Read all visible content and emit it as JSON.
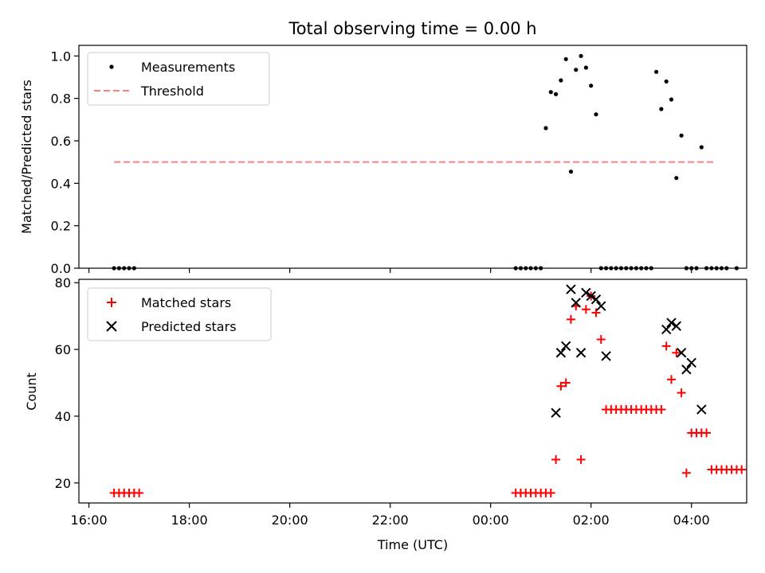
{
  "figure_title": "Total observing time = 0.00 h",
  "chart_data": [
    {
      "type": "scatter",
      "title": "",
      "xlabel": "",
      "ylabel": "Matched/Predicted stars",
      "xlim": [
        "15:48",
        "05:06"
      ],
      "ylim": [
        0,
        1.05
      ],
      "yticks": [
        "0.0",
        "0.2",
        "0.4",
        "0.6",
        "0.8",
        "1.0"
      ],
      "xticks": [
        "16:00",
        "18:00",
        "20:00",
        "22:00",
        "00:00",
        "02:00",
        "04:00"
      ],
      "legend": {
        "placement": "top-left",
        "entries": [
          "Measurements",
          "Threshold"
        ]
      },
      "threshold": {
        "name": "Threshold",
        "value": 0.5,
        "x_start": "16:30",
        "x_end": "04:30",
        "color": "#ff7f7f",
        "style": "dashed"
      },
      "series": [
        {
          "name": "Measurements",
          "color": "#000000",
          "marker": "dot",
          "points": [
            [
              "16:30",
              0
            ],
            [
              "16:36",
              0
            ],
            [
              "16:42",
              0
            ],
            [
              "16:48",
              0
            ],
            [
              "16:54",
              0
            ],
            [
              "00:30",
              0
            ],
            [
              "00:36",
              0
            ],
            [
              "00:42",
              0
            ],
            [
              "00:48",
              0
            ],
            [
              "00:54",
              0
            ],
            [
              "01:00",
              0
            ],
            [
              "01:06",
              0.66
            ],
            [
              "01:12",
              0.83
            ],
            [
              "01:18",
              0.82
            ],
            [
              "01:24",
              0.885
            ],
            [
              "01:30",
              0.985
            ],
            [
              "01:36",
              0.455
            ],
            [
              "01:42",
              0.935
            ],
            [
              "01:48",
              1.0
            ],
            [
              "01:54",
              0.945
            ],
            [
              "02:00",
              0.86
            ],
            [
              "02:06",
              0.725
            ],
            [
              "02:12",
              0
            ],
            [
              "02:18",
              0
            ],
            [
              "02:24",
              0
            ],
            [
              "02:30",
              0
            ],
            [
              "02:36",
              0
            ],
            [
              "02:42",
              0
            ],
            [
              "02:48",
              0
            ],
            [
              "02:54",
              0
            ],
            [
              "03:00",
              0
            ],
            [
              "03:06",
              0
            ],
            [
              "03:12",
              0
            ],
            [
              "03:18",
              0.925
            ],
            [
              "03:24",
              0.75
            ],
            [
              "03:30",
              0.88
            ],
            [
              "03:36",
              0.795
            ],
            [
              "03:42",
              0.425
            ],
            [
              "03:48",
              0.625
            ],
            [
              "03:54",
              0
            ],
            [
              "04:00",
              0
            ],
            [
              "04:06",
              0
            ],
            [
              "04:12",
              0.57
            ],
            [
              "04:18",
              0
            ],
            [
              "04:24",
              0
            ],
            [
              "04:30",
              0
            ],
            [
              "04:36",
              0
            ],
            [
              "04:42",
              0
            ],
            [
              "04:54",
              0
            ]
          ]
        }
      ]
    },
    {
      "type": "scatter",
      "title": "",
      "xlabel": "Time (UTC)",
      "ylabel": "Count",
      "xlim": [
        "15:48",
        "05:06"
      ],
      "ylim": [
        14,
        81
      ],
      "yticks": [
        "20",
        "40",
        "60",
        "80"
      ],
      "xticks": [
        "16:00",
        "18:00",
        "20:00",
        "22:00",
        "00:00",
        "02:00",
        "04:00"
      ],
      "legend": {
        "placement": "top-left",
        "entries": [
          "Matched stars",
          "Predicted stars"
        ]
      },
      "series": [
        {
          "name": "Matched stars",
          "color": "#ff0000",
          "marker": "plus",
          "points": [
            [
              "16:30",
              17
            ],
            [
              "16:36",
              17
            ],
            [
              "16:42",
              17
            ],
            [
              "16:48",
              17
            ],
            [
              "16:54",
              17
            ],
            [
              "17:00",
              17
            ],
            [
              "00:30",
              17
            ],
            [
              "00:36",
              17
            ],
            [
              "00:42",
              17
            ],
            [
              "00:48",
              17
            ],
            [
              "00:54",
              17
            ],
            [
              "01:00",
              17
            ],
            [
              "01:06",
              17
            ],
            [
              "01:12",
              17
            ],
            [
              "01:18",
              27
            ],
            [
              "01:24",
              49
            ],
            [
              "01:30",
              50
            ],
            [
              "01:36",
              69
            ],
            [
              "01:42",
              73
            ],
            [
              "01:48",
              27
            ],
            [
              "01:54",
              72
            ],
            [
              "02:00",
              76
            ],
            [
              "02:06",
              71
            ],
            [
              "02:12",
              63
            ],
            [
              "02:18",
              42
            ],
            [
              "02:24",
              42
            ],
            [
              "02:30",
              42
            ],
            [
              "02:36",
              42
            ],
            [
              "02:42",
              42
            ],
            [
              "02:48",
              42
            ],
            [
              "02:54",
              42
            ],
            [
              "03:00",
              42
            ],
            [
              "03:06",
              42
            ],
            [
              "03:12",
              42
            ],
            [
              "03:18",
              42
            ],
            [
              "03:24",
              42
            ],
            [
              "03:30",
              61
            ],
            [
              "03:36",
              51
            ],
            [
              "03:42",
              59
            ],
            [
              "03:48",
              47
            ],
            [
              "03:54",
              23
            ],
            [
              "04:00",
              35
            ],
            [
              "04:06",
              35
            ],
            [
              "04:12",
              35
            ],
            [
              "04:18",
              35
            ],
            [
              "04:24",
              24
            ],
            [
              "04:30",
              24
            ],
            [
              "04:36",
              24
            ],
            [
              "04:42",
              24
            ],
            [
              "04:48",
              24
            ],
            [
              "04:54",
              24
            ],
            [
              "05:00",
              24
            ]
          ]
        },
        {
          "name": "Predicted stars",
          "color": "#000000",
          "marker": "x",
          "points": [
            [
              "01:18",
              41
            ],
            [
              "01:24",
              59
            ],
            [
              "01:30",
              61
            ],
            [
              "01:36",
              78
            ],
            [
              "01:42",
              74
            ],
            [
              "01:48",
              59
            ],
            [
              "01:54",
              77
            ],
            [
              "02:00",
              76
            ],
            [
              "02:06",
              75
            ],
            [
              "02:12",
              73
            ],
            [
              "02:18",
              58
            ],
            [
              "03:30",
              66
            ],
            [
              "03:36",
              68
            ],
            [
              "03:42",
              67
            ],
            [
              "03:48",
              59
            ],
            [
              "03:54",
              54
            ],
            [
              "04:00",
              56
            ],
            [
              "04:12",
              42
            ]
          ]
        }
      ]
    }
  ]
}
